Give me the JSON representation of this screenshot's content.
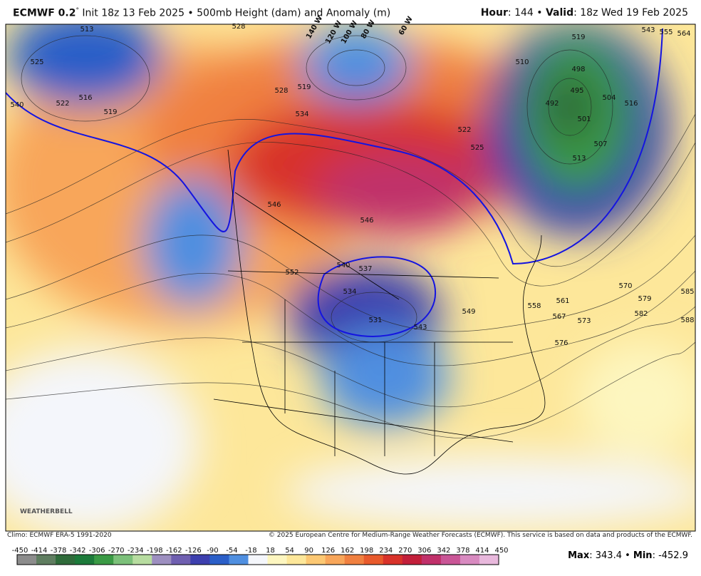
{
  "header": {
    "model": "ECMWF 0.2",
    "degree": "°",
    "init": "Init 18z 13 Feb 2025 • 500mb Height (dam) and Anomaly (m)",
    "hour_label": "Hour",
    "hour": ": 144 • ",
    "valid_label": "Valid",
    "valid": ": 18z Wed 19 Feb 2025"
  },
  "map": {
    "contour_labels": [
      "525",
      "522",
      "516",
      "519",
      "540",
      "513",
      "528",
      "528",
      "519",
      "534",
      "522",
      "525",
      "546",
      "546",
      "552",
      "537",
      "540",
      "534",
      "531",
      "543",
      "549",
      "558",
      "561",
      "567",
      "573",
      "576",
      "570",
      "579",
      "582",
      "585",
      "588",
      "510",
      "498",
      "495",
      "492",
      "501",
      "504",
      "507",
      "516",
      "513",
      "519",
      "543",
      "555",
      "564"
    ],
    "longitude_labels": [
      "140 W",
      "120 W",
      "100 W",
      "80 W",
      "60 W"
    ],
    "logo": "WEATHERBELL"
  },
  "footer": {
    "climo": "Climo: ECMWF ERA-5 1991-2020",
    "copyright": "© 2025 European Centre for Medium-Range Weather Forecasts (ECMWF). This service is based on data and products of the ECMWF.",
    "max_label": "Max",
    "max_sep": ": ",
    "max": 343.4,
    "sep": " • ",
    "min_label": "Min",
    "min_sep": ": ",
    "min": -452.9
  },
  "colorbar": {
    "ticks": [
      -450,
      -414,
      -378,
      -342,
      -306,
      -270,
      -234,
      -198,
      -162,
      -126,
      -90,
      -54,
      -18,
      18,
      54,
      90,
      126,
      162,
      198,
      234,
      270,
      306,
      342,
      378,
      414,
      450
    ],
    "colors": [
      "#8c8c8c",
      "#5f7d60",
      "#2f6b3a",
      "#1c7a3a",
      "#3a9a45",
      "#7cc07a",
      "#b7dca0",
      "#9d8fc0",
      "#6f5fb0",
      "#3d3fae",
      "#2b5fc8",
      "#4f8fe0",
      "#f4f6fb",
      "#fdf6c0",
      "#fde79a",
      "#fcc873",
      "#f8a65a",
      "#f08040",
      "#e85a2c",
      "#d8322a",
      "#c21f3a",
      "#c0306a",
      "#c95596",
      "#d88ac0",
      "#e8b8dc"
    ]
  }
}
